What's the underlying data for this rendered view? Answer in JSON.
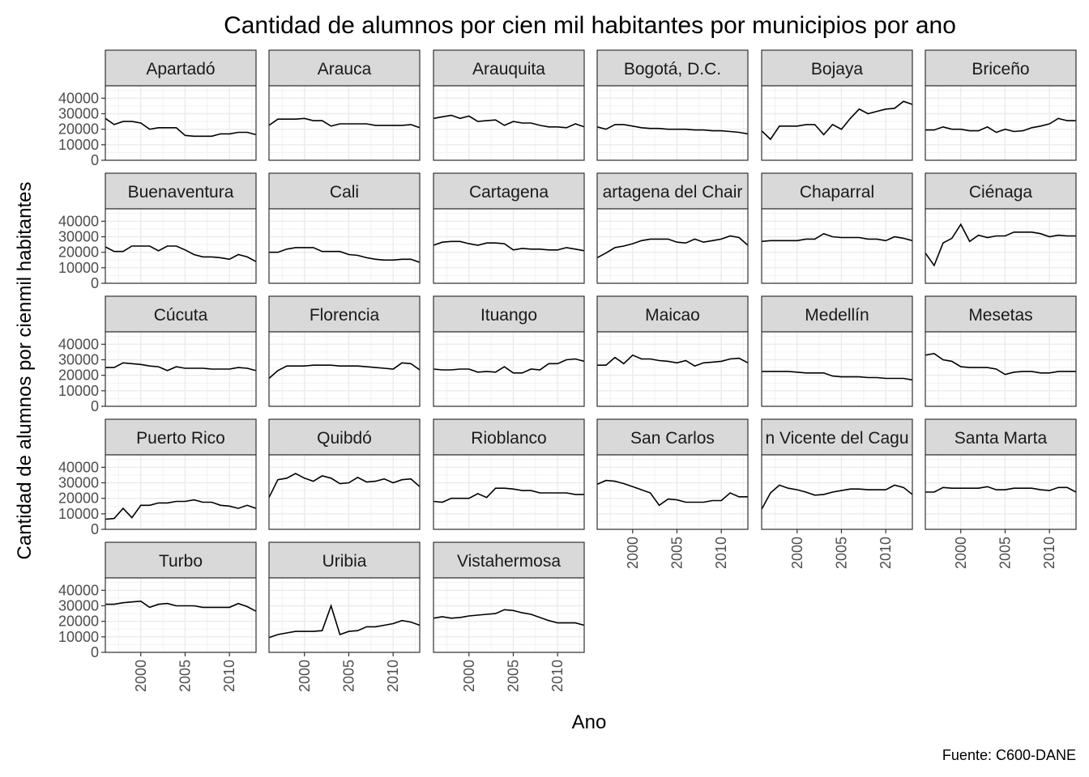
{
  "chart_data": {
    "type": "line",
    "layout": "facet_wrap",
    "facet_columns": 6,
    "title": "Cantidad de alumnos por cien mil habitantes por municipios por ano",
    "xlabel": "Ano",
    "ylabel": "Cantidad de alumnos por cienmil habitantes",
    "caption": "Fuente: C600-DANE",
    "xlim": [
      1996,
      2013
    ],
    "ylim": [
      0,
      48000
    ],
    "x_ticks": [
      2000,
      2005,
      2010
    ],
    "y_ticks": [
      0,
      10000,
      20000,
      30000,
      40000
    ],
    "grid": true,
    "x": [
      1996,
      1997,
      1998,
      1999,
      2000,
      2001,
      2002,
      2003,
      2004,
      2005,
      2006,
      2007,
      2008,
      2009,
      2010,
      2011,
      2012,
      2013
    ],
    "series": [
      {
        "name": "Apartadó",
        "values": [
          27000,
          23000,
          25000,
          25000,
          24000,
          20000,
          21000,
          21000,
          21000,
          16000,
          15500,
          15500,
          15500,
          17000,
          17000,
          18000,
          18000,
          16500
        ]
      },
      {
        "name": "Arauca",
        "values": [
          22500,
          26500,
          26500,
          26500,
          27000,
          25500,
          25500,
          22000,
          23500,
          23500,
          23500,
          23500,
          22500,
          22500,
          22500,
          22500,
          23000,
          21000
        ]
      },
      {
        "name": "Arauquita",
        "values": [
          27000,
          28000,
          29000,
          27000,
          28500,
          25000,
          25500,
          26000,
          22500,
          25000,
          24000,
          24000,
          22500,
          21500,
          21500,
          21000,
          23500,
          21500
        ]
      },
      {
        "name": "Bogotá, D.C.",
        "values": [
          21500,
          20000,
          23000,
          23000,
          22000,
          21000,
          20500,
          20500,
          20000,
          20000,
          20000,
          19500,
          19500,
          19000,
          19000,
          18500,
          18000,
          17000
        ]
      },
      {
        "name": "Bojaya",
        "values": [
          19000,
          13500,
          22000,
          22000,
          22000,
          23000,
          23000,
          16500,
          23000,
          20000,
          27000,
          33000,
          30000,
          31500,
          33000,
          33500,
          38000,
          36000
        ]
      },
      {
        "name": "Briceño",
        "values": [
          19500,
          19500,
          21500,
          20000,
          20000,
          19000,
          19000,
          21500,
          18000,
          20000,
          18500,
          19000,
          21000,
          22000,
          23500,
          27000,
          25500,
          25500
        ]
      },
      {
        "name": "Buenaventura",
        "values": [
          23500,
          20500,
          20500,
          24000,
          24000,
          24000,
          21000,
          24000,
          24000,
          21500,
          18500,
          17000,
          17000,
          16500,
          15500,
          18500,
          17000,
          14000
        ]
      },
      {
        "name": "Cali",
        "values": [
          20000,
          20000,
          22000,
          23000,
          23000,
          23000,
          20500,
          20500,
          20500,
          18500,
          18000,
          16500,
          15500,
          15000,
          15000,
          15500,
          15500,
          13500
        ]
      },
      {
        "name": "Cartagena",
        "values": [
          24500,
          26500,
          27000,
          27000,
          25500,
          24500,
          26000,
          26000,
          25500,
          21500,
          22500,
          22000,
          22000,
          21500,
          21500,
          23000,
          22000,
          21000
        ]
      },
      {
        "name": "Cartagena del Chairá",
        "values": [
          16500,
          19500,
          23000,
          24000,
          25500,
          27500,
          28500,
          28500,
          28500,
          26500,
          26000,
          28500,
          26500,
          27500,
          28500,
          30500,
          29500,
          24500
        ]
      },
      {
        "name": "Chaparral",
        "values": [
          27000,
          27500,
          27500,
          27500,
          27500,
          28500,
          28500,
          32000,
          30000,
          29500,
          29500,
          29500,
          28500,
          28500,
          27500,
          30000,
          29000,
          27500
        ]
      },
      {
        "name": "Ciénaga",
        "values": [
          19500,
          11500,
          26000,
          29000,
          38000,
          27000,
          31000,
          29500,
          30500,
          30500,
          33000,
          33000,
          33000,
          32000,
          30000,
          31000,
          30500,
          30500
        ]
      },
      {
        "name": "Cúcuta",
        "values": [
          25000,
          25000,
          28000,
          27500,
          27000,
          26000,
          25500,
          23000,
          25500,
          24500,
          24500,
          24500,
          24000,
          24000,
          24000,
          25000,
          24500,
          23000
        ]
      },
      {
        "name": "Florencia",
        "values": [
          18000,
          23000,
          26000,
          26000,
          26000,
          26500,
          26500,
          26500,
          26000,
          26000,
          26000,
          25500,
          25000,
          24500,
          24000,
          28000,
          27500,
          23500
        ]
      },
      {
        "name": "Ituango",
        "values": [
          24000,
          23500,
          23500,
          24000,
          24000,
          22000,
          22500,
          22000,
          25500,
          21500,
          21500,
          24000,
          23500,
          27500,
          27500,
          30000,
          30500,
          29000
        ]
      },
      {
        "name": "Maicao",
        "values": [
          26500,
          26500,
          31500,
          27500,
          33000,
          30500,
          30500,
          29500,
          29000,
          28000,
          29500,
          26000,
          28000,
          28500,
          29000,
          30500,
          31000,
          28000
        ]
      },
      {
        "name": "Medellín",
        "values": [
          22500,
          22500,
          22500,
          22500,
          22000,
          21500,
          21500,
          21500,
          19500,
          19000,
          19000,
          19000,
          18500,
          18500,
          18000,
          18000,
          18000,
          17000
        ]
      },
      {
        "name": "Mesetas",
        "values": [
          33000,
          34000,
          30000,
          29000,
          25500,
          25000,
          25000,
          25000,
          24000,
          20500,
          22000,
          22500,
          22500,
          21500,
          21500,
          22500,
          22500,
          22500
        ]
      },
      {
        "name": "Puerto Rico",
        "values": [
          6500,
          7000,
          13500,
          7500,
          15500,
          15500,
          17000,
          17000,
          18000,
          18000,
          19000,
          17500,
          17500,
          15500,
          15000,
          13500,
          15500,
          13500
        ]
      },
      {
        "name": "Quibdó",
        "values": [
          20500,
          32000,
          33000,
          36000,
          33000,
          31000,
          34500,
          33000,
          29500,
          30000,
          33500,
          30500,
          31000,
          32500,
          30000,
          32000,
          32500,
          27500
        ]
      },
      {
        "name": "Rioblanco",
        "values": [
          18000,
          17500,
          20000,
          20000,
          20000,
          23000,
          20500,
          26500,
          26500,
          26000,
          25000,
          25000,
          23500,
          23500,
          23500,
          23500,
          22500,
          22500
        ]
      },
      {
        "name": "San Carlos",
        "values": [
          29000,
          31500,
          31000,
          29500,
          27500,
          25500,
          23500,
          15500,
          19500,
          19000,
          17500,
          17500,
          17500,
          18500,
          18500,
          23500,
          21000,
          21000
        ]
      },
      {
        "name": "San Vicente del Caguán",
        "values": [
          13000,
          23500,
          28500,
          26500,
          25500,
          24000,
          22000,
          22500,
          24000,
          25000,
          26000,
          26000,
          25500,
          25500,
          25500,
          28500,
          27000,
          22500
        ]
      },
      {
        "name": "Santa Marta",
        "values": [
          24000,
          24000,
          27000,
          26500,
          26500,
          26500,
          26500,
          27500,
          25500,
          25500,
          26500,
          26500,
          26500,
          25500,
          25000,
          27000,
          27000,
          24000
        ]
      },
      {
        "name": "Turbo",
        "values": [
          31000,
          31000,
          32000,
          32500,
          33000,
          29000,
          31000,
          31500,
          30000,
          30000,
          30000,
          29000,
          29000,
          29000,
          29000,
          31500,
          29500,
          26500
        ]
      },
      {
        "name": "Uribia",
        "values": [
          9500,
          11500,
          12500,
          13500,
          13500,
          13500,
          14000,
          30000,
          11500,
          13500,
          14000,
          16500,
          16500,
          17500,
          18500,
          20500,
          19500,
          17500
        ]
      },
      {
        "name": "Vistahermosa",
        "values": [
          22000,
          23000,
          22000,
          22500,
          23500,
          24000,
          24500,
          25000,
          27500,
          27000,
          25500,
          24500,
          22500,
          20500,
          19000,
          19000,
          19000,
          17500
        ]
      }
    ],
    "strip_labels": [
      "Apartadó",
      "Arauca",
      "Arauquita",
      "Bogotá, D.C.",
      "Bojaya",
      "Briceño",
      "Buenaventura",
      "Cali",
      "Cartagena",
      "artagena del Chair",
      "Chaparral",
      "Ciénaga",
      "Cúcuta",
      "Florencia",
      "Ituango",
      "Maicao",
      "Medellín",
      "Mesetas",
      "Puerto Rico",
      "Quibdó",
      "Rioblanco",
      "San Carlos",
      "n Vicente del Cagu",
      "Santa Marta",
      "Turbo",
      "Uribia",
      "Vistahermosa"
    ]
  }
}
